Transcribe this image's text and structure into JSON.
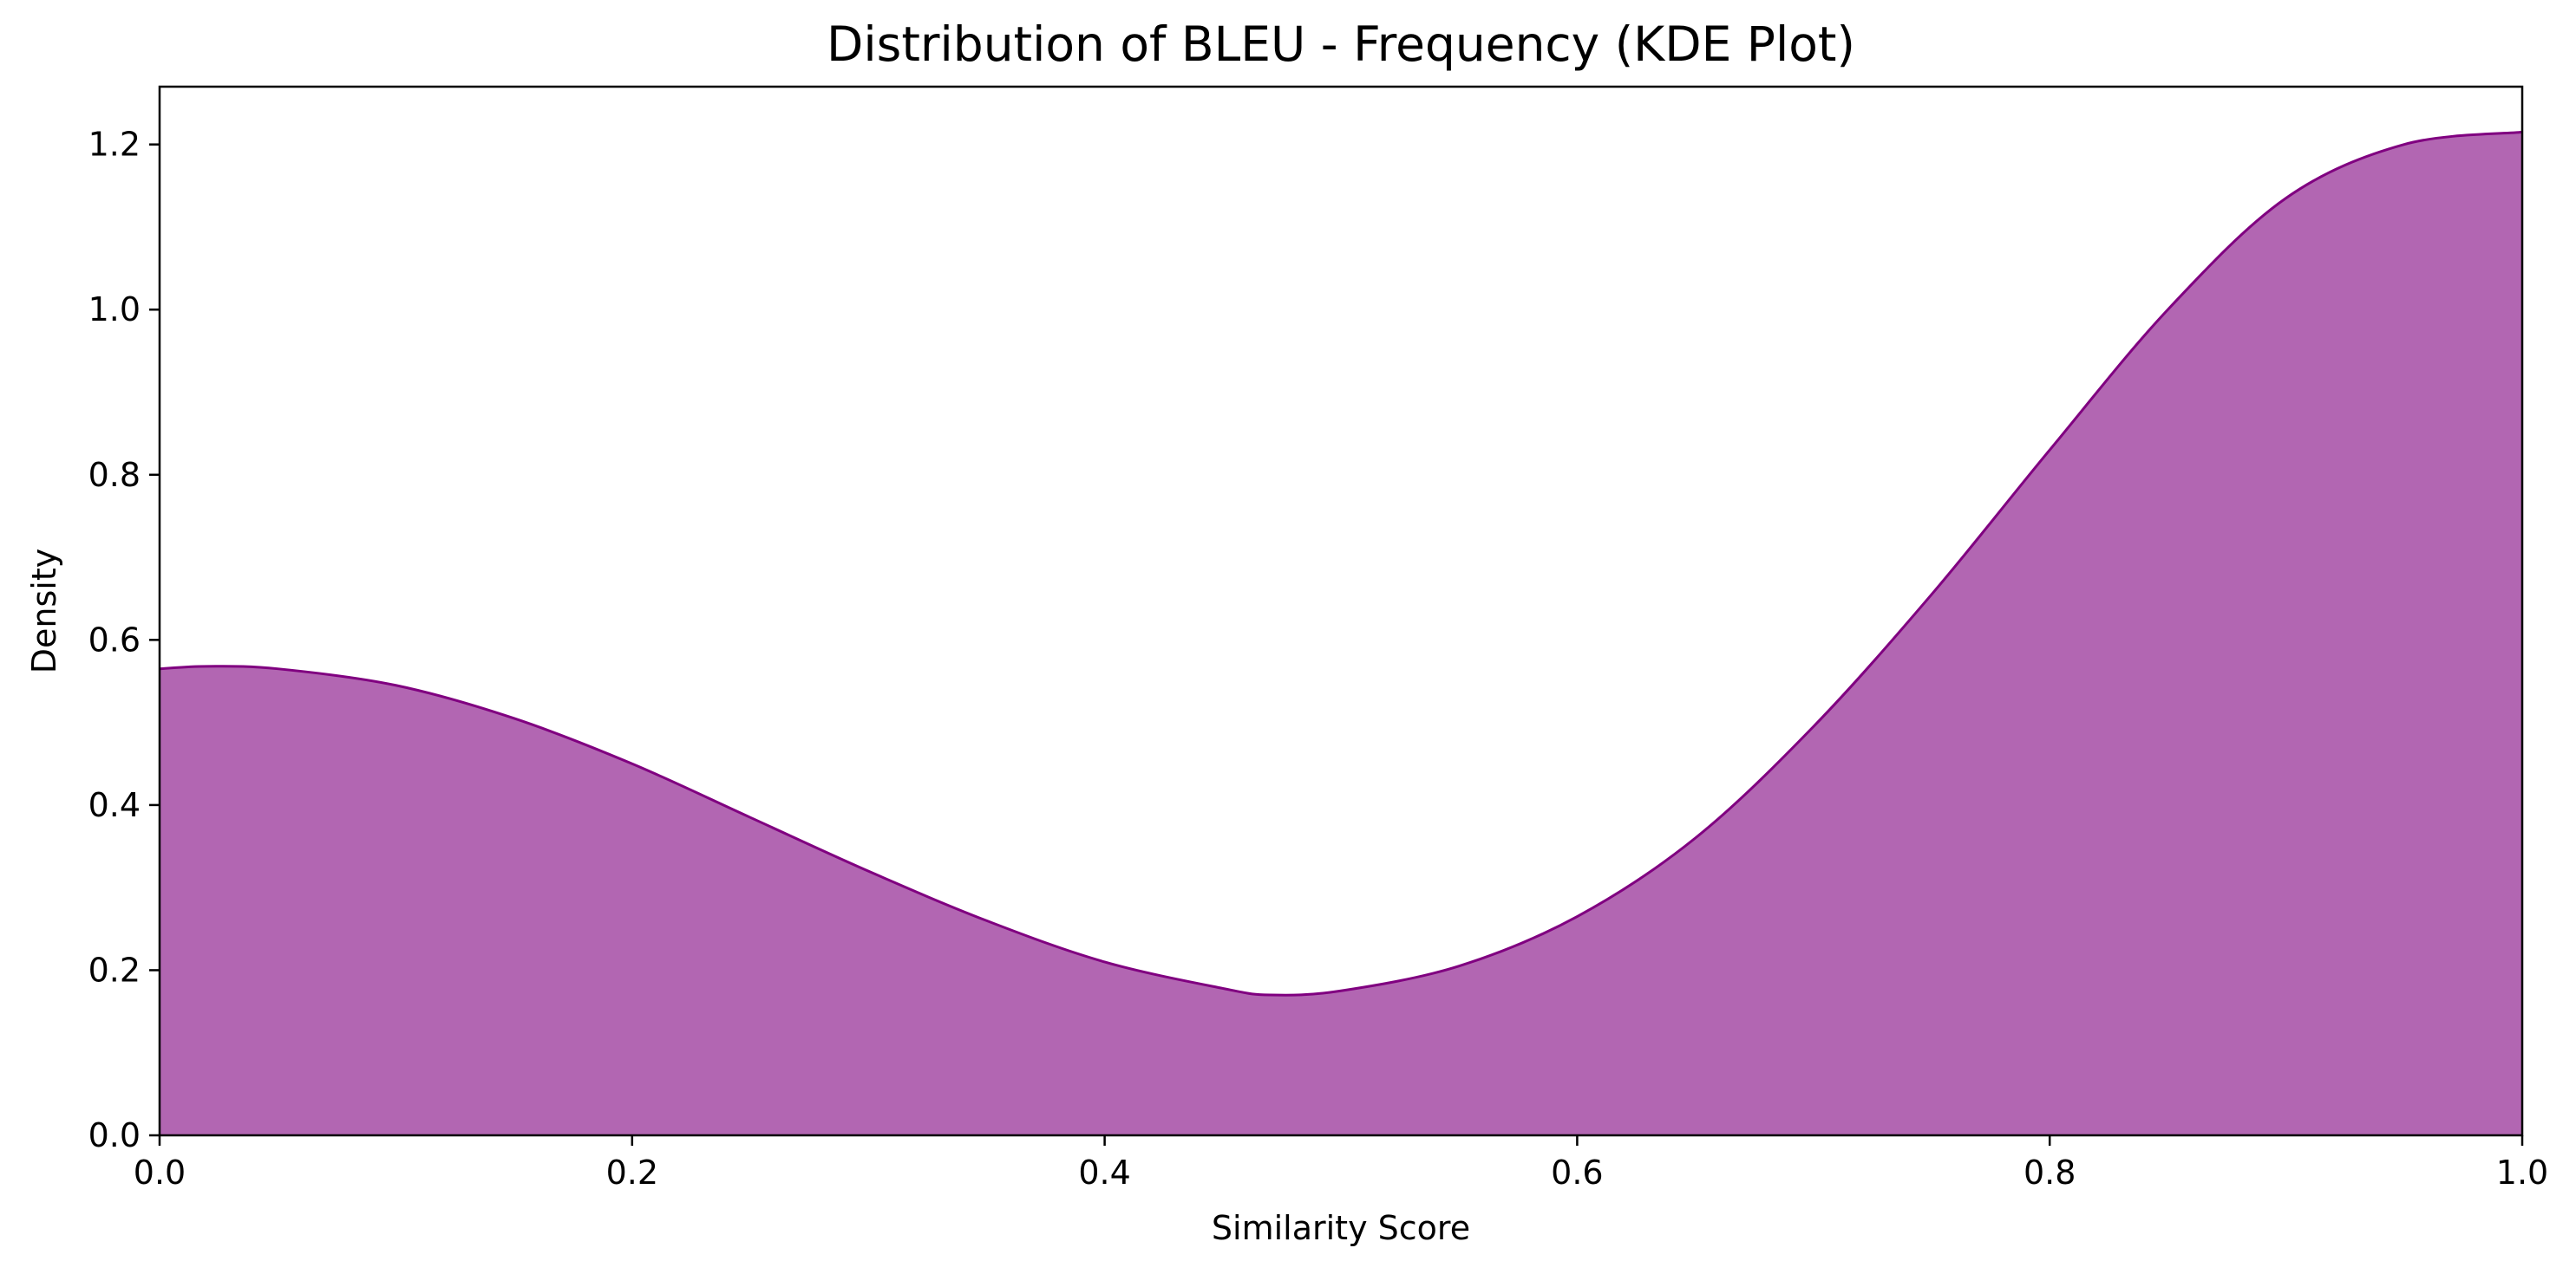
{
  "chart_data": {
    "type": "area",
    "title": "Distribution of BLEU - Frequency (KDE Plot)",
    "xlabel": "Similarity Score",
    "ylabel": "Density",
    "xlim": [
      0.0,
      1.0
    ],
    "ylim": [
      0.0,
      1.27
    ],
    "xticks": [
      "0.0",
      "0.2",
      "0.4",
      "0.6",
      "0.8",
      "1.0"
    ],
    "yticks": [
      "0.0",
      "0.2",
      "0.4",
      "0.6",
      "0.8",
      "1.0",
      "1.2"
    ],
    "grid": false,
    "legend": "none",
    "series": [
      {
        "fill_color": "#b266b2",
        "line_color": "#800080",
        "x": [
          0.0,
          0.02,
          0.05,
          0.1,
          0.15,
          0.2,
          0.25,
          0.3,
          0.35,
          0.4,
          0.45,
          0.47,
          0.5,
          0.55,
          0.6,
          0.65,
          0.7,
          0.75,
          0.8,
          0.85,
          0.9,
          0.95,
          1.0
        ],
        "y": [
          0.565,
          0.568,
          0.565,
          0.545,
          0.505,
          0.45,
          0.385,
          0.32,
          0.26,
          0.21,
          0.178,
          0.17,
          0.175,
          0.205,
          0.265,
          0.36,
          0.495,
          0.655,
          0.83,
          1.0,
          1.135,
          1.2,
          1.215
        ]
      }
    ]
  }
}
